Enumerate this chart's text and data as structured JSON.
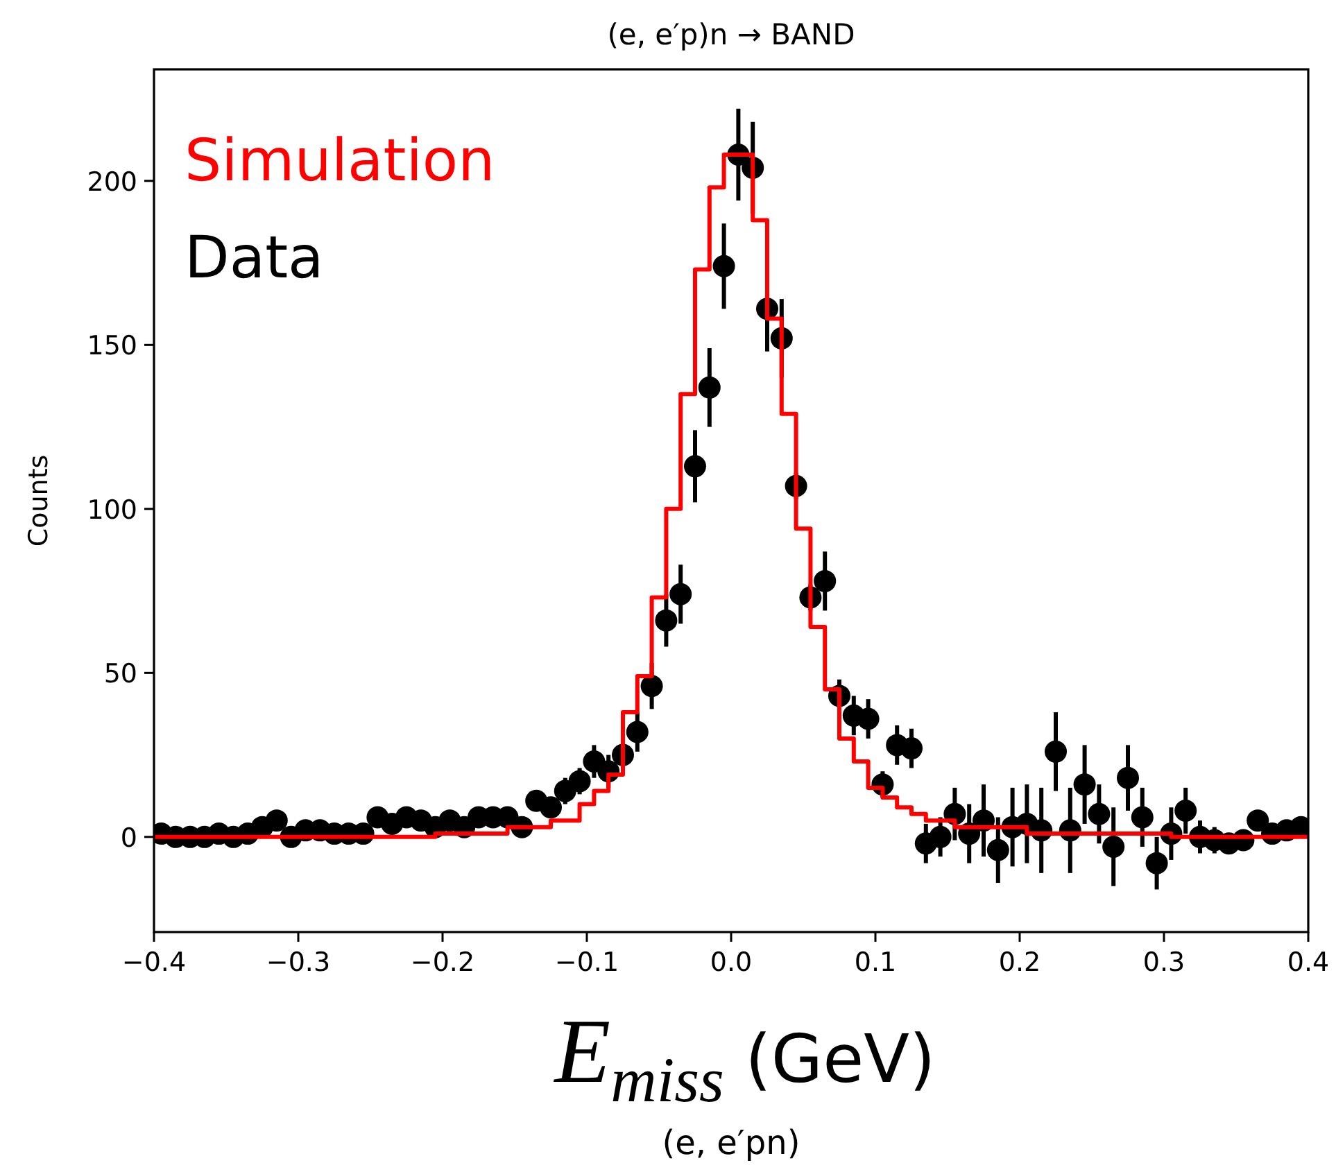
{
  "chart_data": {
    "type": "scatter",
    "title": "(e, e′p)n → BAND",
    "xlabel": "E$_{miss}$ (GeV)",
    "ylabel": "Counts",
    "annotations": [
      "(e, e′pn)"
    ],
    "xlim": [
      -0.4,
      0.4
    ],
    "ylim": [
      -29,
      234
    ],
    "xticks": [
      {
        "value": -0.4,
        "label": "−0.4"
      },
      {
        "value": -0.3,
        "label": "−0.3"
      },
      {
        "value": -0.2,
        "label": "−0.2"
      },
      {
        "value": -0.1,
        "label": "−0.1"
      },
      {
        "value": 0,
        "label": "0.0"
      },
      0.1,
      0.2,
      0.3,
      0.4
    ],
    "yticks": [
      0,
      50,
      100,
      150,
      200
    ],
    "legend": "top left",
    "grid": false,
    "series": [
      {
        "name": "Simulation",
        "type": "step",
        "color": "#ff0000",
        "x": [
          -0.4,
          -0.39,
          -0.38,
          -0.37,
          -0.36,
          -0.35,
          -0.34,
          -0.33,
          -0.32,
          -0.31,
          -0.3,
          -0.29,
          -0.28,
          -0.27,
          -0.26,
          -0.25,
          -0.24,
          -0.23,
          -0.22,
          -0.21,
          -0.2,
          -0.19,
          -0.18,
          -0.17,
          -0.16,
          -0.15,
          -0.14,
          -0.13,
          -0.12,
          -0.11,
          -0.1,
          -0.09,
          -0.08,
          -0.07,
          -0.06,
          -0.05,
          -0.04,
          -0.03,
          -0.02,
          -0.01,
          0,
          0.01,
          0.02,
          0.03,
          0.04,
          0.05,
          0.06,
          0.07,
          0.08,
          0.09,
          0.1,
          0.11,
          0.12,
          0.13,
          0.14,
          0.15,
          0.16,
          0.17,
          0.18,
          0.19,
          0.2,
          0.21,
          0.22,
          0.23,
          0.24,
          0.25,
          0.26,
          0.27,
          0.28,
          0.29,
          0.3,
          0.31,
          0.32,
          0.33,
          0.34,
          0.35,
          0.36,
          0.37,
          0.38,
          0.39,
          0.4
        ],
        "values": [
          0,
          0,
          0,
          0,
          0,
          0,
          0,
          0,
          0,
          0,
          0,
          0,
          0,
          0,
          0,
          0,
          0,
          0,
          0,
          0,
          1,
          1,
          1,
          1,
          1,
          3,
          3,
          3,
          5,
          5,
          10,
          14,
          19,
          38,
          49,
          73,
          100,
          135,
          173,
          198,
          208,
          208,
          188,
          158,
          129,
          94,
          64,
          45,
          30,
          23,
          15,
          12,
          9,
          7,
          5,
          5,
          3,
          3,
          3,
          3,
          3,
          1,
          1,
          1,
          1,
          1,
          1,
          1,
          1,
          1,
          1,
          0,
          0,
          0,
          0,
          0,
          0,
          0,
          0,
          0,
          0
        ]
      },
      {
        "name": "Data",
        "marker": "circle",
        "color": "#000000",
        "x": [
          -0.395,
          -0.385,
          -0.375,
          -0.365,
          -0.355,
          -0.345,
          -0.335,
          -0.325,
          -0.315,
          -0.305,
          -0.295,
          -0.285,
          -0.275,
          -0.265,
          -0.255,
          -0.245,
          -0.235,
          -0.225,
          -0.215,
          -0.205,
          -0.195,
          -0.185,
          -0.175,
          -0.165,
          -0.155,
          -0.145,
          -0.135,
          -0.125,
          -0.115,
          -0.105,
          -0.095,
          -0.085,
          -0.075,
          -0.065,
          -0.055,
          -0.045,
          -0.035,
          -0.025,
          -0.015,
          -0.005,
          0.005,
          0.015,
          0.025,
          0.035,
          0.045,
          0.055,
          0.065,
          0.075,
          0.085,
          0.095,
          0.105,
          0.115,
          0.125,
          0.135,
          0.145,
          0.155,
          0.165,
          0.175,
          0.185,
          0.195,
          0.205,
          0.215,
          0.225,
          0.235,
          0.245,
          0.255,
          0.265,
          0.275,
          0.285,
          0.295,
          0.305,
          0.315,
          0.325,
          0.335,
          0.345,
          0.355,
          0.365,
          0.375,
          0.385,
          0.395
        ],
        "values": [
          1,
          0,
          0,
          0,
          1,
          0,
          1,
          3,
          5,
          0,
          2,
          2,
          1,
          1,
          1,
          6,
          4,
          6,
          5,
          3,
          5,
          3,
          6,
          6,
          6,
          3,
          11,
          9,
          14,
          17,
          23,
          20,
          25,
          32,
          46,
          66,
          74,
          113,
          137,
          174,
          208,
          204,
          161,
          152,
          107,
          73,
          78,
          43,
          37,
          36,
          16,
          28,
          27,
          -2,
          0,
          7,
          1,
          5,
          -4,
          3,
          4,
          2,
          26,
          2,
          16,
          7,
          -3,
          18,
          6,
          -8,
          1,
          8,
          0,
          -1,
          -2,
          -1,
          5,
          1,
          2,
          3
        ],
        "errors": [
          2,
          2,
          2,
          2,
          2,
          2,
          2,
          2,
          2,
          2,
          2,
          2,
          2,
          2,
          2,
          2,
          2,
          2,
          2,
          2,
          2,
          2,
          2,
          2,
          2,
          2,
          3,
          3,
          4,
          4,
          5,
          5,
          null,
          6,
          7,
          8,
          9,
          11,
          12,
          13,
          14,
          14,
          13,
          12,
          4,
          4,
          9,
          5,
          6,
          6,
          4,
          6,
          6,
          6,
          6,
          8,
          9,
          11,
          10,
          12,
          12,
          13,
          12,
          13,
          12,
          9,
          12,
          10,
          9,
          8,
          8,
          7,
          5,
          4,
          3,
          3,
          2,
          2,
          2,
          2
        ]
      }
    ]
  }
}
